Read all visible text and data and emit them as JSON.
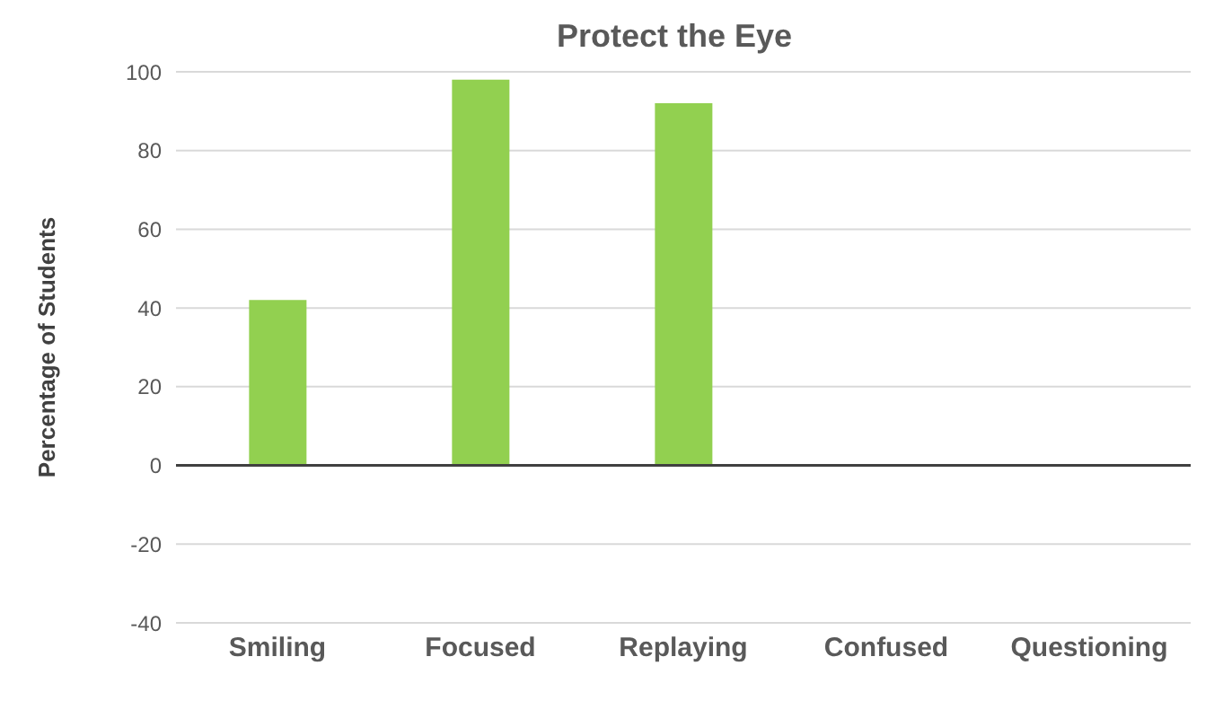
{
  "chart_data": {
    "type": "bar",
    "title": "Protect the Eye",
    "ylabel": "Percentage of Students",
    "categories": [
      "Smiling",
      "Focused",
      "Replaying",
      "Confused",
      "Questioning"
    ],
    "values": [
      42,
      98,
      92,
      0,
      0
    ],
    "color": "#92d050",
    "ylim": [
      -40,
      100
    ],
    "yticks": [
      -40,
      -20,
      0,
      20,
      40,
      60,
      80,
      100
    ],
    "grid": "y"
  }
}
